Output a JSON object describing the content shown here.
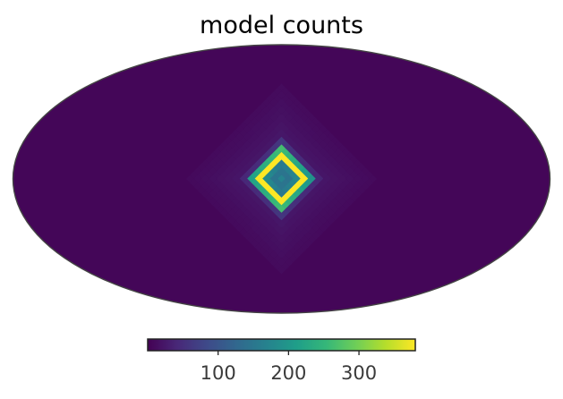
{
  "chart_data": {
    "type": "heatmap",
    "projection": "mollweide",
    "title": "model counts",
    "colormap": "viridis",
    "colormap_stops": [
      "#440154",
      "#482878",
      "#3e4a89",
      "#31688e",
      "#26828e",
      "#1f9e89",
      "#35b779",
      "#6ece58",
      "#b5de2b",
      "#fde725"
    ],
    "colorbar": {
      "range": [
        0,
        380
      ],
      "ticks": [
        100,
        200,
        300
      ],
      "tick_labels": [
        "100",
        "200",
        "300"
      ],
      "orientation": "horizontal",
      "position": "bottom"
    },
    "background_value": 5,
    "source": {
      "shape": "diamond ring",
      "lon_deg": 0,
      "lat_deg": 0,
      "ring_peak_value": 375,
      "center_value": 140,
      "halo_value": 25
    }
  }
}
